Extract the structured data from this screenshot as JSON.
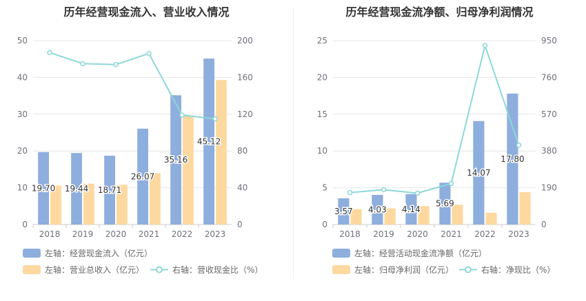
{
  "chart_data": [
    {
      "type": "bar",
      "title": "历年经营现金流入、营业收入情况",
      "categories": [
        "2018",
        "2019",
        "2020",
        "2021",
        "2022",
        "2023"
      ],
      "y_left": {
        "ylim": [
          0,
          50
        ],
        "ticks": [
          "0",
          "10",
          "20",
          "30",
          "40",
          "50"
        ]
      },
      "y_right": {
        "ylim": [
          0,
          200
        ],
        "ticks": [
          "0",
          "40",
          "80",
          "120",
          "160",
          "200"
        ]
      },
      "series": [
        {
          "name": "左轴：经营现金流入（亿元）",
          "axis": "left",
          "kind": "bar",
          "color": "#8eaedd",
          "values": [
            19.7,
            19.44,
            18.71,
            26.07,
            35.16,
            45.12
          ],
          "labels": [
            "19.70",
            "19.44",
            "18.71",
            "26.07",
            "35.16",
            "45.12"
          ]
        },
        {
          "name": "左轴：营业总收入（亿元）",
          "axis": "left",
          "kind": "bar",
          "color": "#fdd9a0",
          "values": [
            10.6,
            11.1,
            10.8,
            14.0,
            29.6,
            39.3
          ]
        },
        {
          "name": "右轴：营收现金比（%）",
          "axis": "right",
          "kind": "line",
          "color": "#8dd7d9",
          "values": [
            187,
            175,
            174,
            186,
            119,
            115
          ]
        }
      ]
    },
    {
      "type": "bar",
      "title": "历年经营现金流净额、归母净利润情况",
      "categories": [
        "2018",
        "2019",
        "2020",
        "2021",
        "2022",
        "2023"
      ],
      "y_left": {
        "ylim": [
          0,
          25
        ],
        "ticks": [
          "0",
          "5",
          "10",
          "15",
          "20",
          "25"
        ]
      },
      "y_right": {
        "ylim": [
          0,
          950
        ],
        "ticks": [
          "0",
          "190",
          "380",
          "570",
          "760",
          "950"
        ]
      },
      "series": [
        {
          "name": "左轴：经营活动现金流净额（亿元）",
          "axis": "left",
          "kind": "bar",
          "color": "#8eaedd",
          "values": [
            3.57,
            4.03,
            4.14,
            5.69,
            14.07,
            17.8
          ],
          "labels": [
            "3.57",
            "4.03",
            "4.14",
            "5.69",
            "14.07",
            "17.80"
          ]
        },
        {
          "name": "左轴：归母净利润（亿元）",
          "axis": "left",
          "kind": "bar",
          "color": "#fdd9a0",
          "values": [
            2.1,
            2.2,
            2.5,
            2.7,
            1.6,
            4.4
          ]
        },
        {
          "name": "右轴：净现比（%）",
          "axis": "right",
          "kind": "line",
          "color": "#8dd7d9",
          "values": [
            165,
            180,
            162,
            212,
            925,
            410
          ]
        }
      ]
    }
  ]
}
